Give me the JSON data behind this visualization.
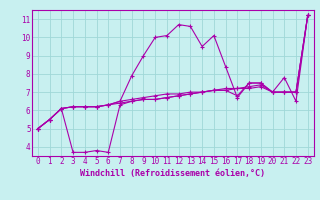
{
  "xlabel": "Windchill (Refroidissement éolien,°C)",
  "bg_color": "#c8f0f0",
  "grid_color": "#a0d8d8",
  "line_color": "#aa00aa",
  "xlim": [
    -0.5,
    23.5
  ],
  "ylim": [
    3.5,
    11.5
  ],
  "xticks": [
    0,
    1,
    2,
    3,
    4,
    5,
    6,
    7,
    8,
    9,
    10,
    11,
    12,
    13,
    14,
    15,
    16,
    17,
    18,
    19,
    20,
    21,
    22,
    23
  ],
  "yticks": [
    4,
    5,
    6,
    7,
    8,
    9,
    10,
    11
  ],
  "series": [
    [
      5.0,
      5.5,
      6.1,
      6.2,
      6.2,
      6.2,
      6.3,
      6.5,
      7.9,
      9.0,
      10.0,
      10.1,
      10.7,
      10.6,
      9.5,
      10.1,
      8.4,
      6.7,
      7.5,
      7.5,
      7.0,
      7.8,
      6.5,
      11.2
    ],
    [
      5.0,
      5.5,
      6.1,
      3.7,
      3.7,
      3.8,
      3.7,
      6.3,
      6.5,
      6.6,
      6.6,
      6.7,
      6.8,
      6.9,
      7.0,
      7.1,
      7.1,
      7.2,
      7.2,
      7.3,
      7.0,
      7.0,
      7.0,
      11.2
    ],
    [
      5.0,
      5.5,
      6.1,
      6.2,
      6.2,
      6.2,
      6.3,
      6.5,
      6.6,
      6.7,
      6.8,
      6.9,
      6.9,
      7.0,
      7.0,
      7.1,
      7.1,
      6.8,
      7.5,
      7.5,
      7.0,
      7.0,
      7.0,
      11.2
    ],
    [
      5.0,
      5.5,
      6.1,
      6.2,
      6.2,
      6.2,
      6.3,
      6.4,
      6.5,
      6.6,
      6.6,
      6.7,
      6.8,
      6.9,
      7.0,
      7.1,
      7.2,
      7.2,
      7.3,
      7.4,
      7.0,
      7.0,
      7.0,
      11.2
    ]
  ],
  "tick_fontsize": 5.5,
  "xlabel_fontsize": 6.0,
  "linewidth": 0.8,
  "markersize": 3.0
}
